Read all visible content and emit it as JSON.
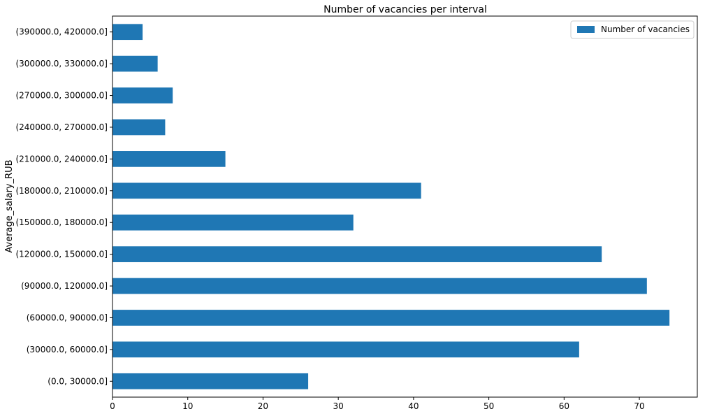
{
  "chart_data": {
    "type": "bar",
    "orientation": "horizontal",
    "title": "Number of vacancies per interval",
    "xlabel": "",
    "ylabel": "Average_salary_RUB",
    "categories": [
      "(0.0, 30000.0]",
      "(30000.0, 60000.0]",
      "(60000.0, 90000.0]",
      "(90000.0, 120000.0]",
      "(120000.0, 150000.0]",
      "(150000.0, 180000.0]",
      "(180000.0, 210000.0]",
      "(210000.0, 240000.0]",
      "(240000.0, 270000.0]",
      "(270000.0, 300000.0]",
      "(300000.0, 330000.0]",
      "(390000.0, 420000.0]"
    ],
    "series": [
      {
        "name": "Number of vacancies",
        "color": "#1f77b4",
        "values": [
          26,
          62,
          74,
          71,
          65,
          32,
          41,
          15,
          7,
          8,
          6,
          4
        ]
      }
    ],
    "xlim": [
      0,
      77.7
    ],
    "xticks": [
      "0",
      "10",
      "20",
      "30",
      "40",
      "50",
      "60",
      "70"
    ],
    "grid": false,
    "legend_position": "top-right"
  }
}
